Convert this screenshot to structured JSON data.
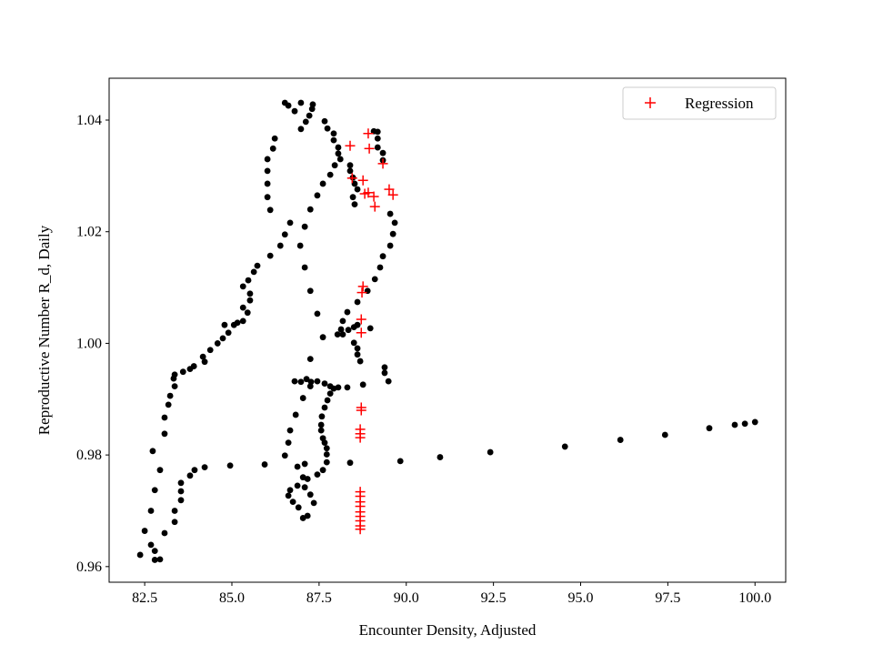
{
  "chart_data": {
    "type": "scatter",
    "title": "",
    "xlabel": "Encounter Density, Adjusted",
    "ylabel": "Reproductive Number R_d, Daily",
    "xlim": [
      81.48,
      100.88
    ],
    "ylim": [
      0.9572,
      1.0475
    ],
    "xticks": [
      82.5,
      85.0,
      87.5,
      90.0,
      92.5,
      95.0,
      97.5,
      100.0
    ],
    "xtick_labels": [
      "82.5",
      "85.0",
      "87.5",
      "90.0",
      "92.5",
      "95.0",
      "97.5",
      "100.0"
    ],
    "yticks": [
      0.96,
      0.98,
      1.0,
      1.02,
      1.04
    ],
    "ytick_labels": [
      "0.96",
      "0.98",
      "1.00",
      "1.02",
      "1.04"
    ],
    "grid": false,
    "legend": {
      "placement": "upper-right",
      "entries": [
        "Regression"
      ]
    },
    "series": [
      {
        "marker": "circle",
        "color": "#000000",
        "points": [
          [
            82.37,
            0.9621
          ],
          [
            82.5,
            0.9664
          ],
          [
            82.68,
            0.97
          ],
          [
            82.68,
            0.9639
          ],
          [
            82.79,
            0.9628
          ],
          [
            82.79,
            0.9612
          ],
          [
            82.94,
            0.9613
          ],
          [
            83.07,
            0.966
          ],
          [
            83.36,
            0.968
          ],
          [
            83.36,
            0.97
          ],
          [
            83.54,
            0.9719
          ],
          [
            83.54,
            0.9735
          ],
          [
            83.54,
            0.975
          ],
          [
            83.8,
            0.9763
          ],
          [
            83.93,
            0.9773
          ],
          [
            84.22,
            0.9778
          ],
          [
            84.95,
            0.9781
          ],
          [
            85.94,
            0.9783
          ],
          [
            86.88,
            0.9779
          ],
          [
            87.09,
            0.9784
          ],
          [
            88.39,
            0.9786
          ],
          [
            89.83,
            0.9789
          ],
          [
            90.97,
            0.9796
          ],
          [
            92.41,
            0.9805
          ],
          [
            94.55,
            0.9815
          ],
          [
            96.14,
            0.9827
          ],
          [
            97.42,
            0.9836
          ],
          [
            98.69,
            0.9848
          ],
          [
            99.42,
            0.9854
          ],
          [
            99.71,
            0.9856
          ],
          [
            100.0,
            0.9859
          ],
          [
            82.79,
            0.9737
          ],
          [
            82.94,
            0.9773
          ],
          [
            82.73,
            0.9807
          ],
          [
            83.07,
            0.9838
          ],
          [
            83.07,
            0.9867
          ],
          [
            83.18,
            0.989
          ],
          [
            83.23,
            0.9906
          ],
          [
            83.36,
            0.9923
          ],
          [
            83.33,
            0.9937
          ],
          [
            83.36,
            0.9944
          ],
          [
            83.6,
            0.9949
          ],
          [
            83.8,
            0.9954
          ],
          [
            83.91,
            0.9959
          ],
          [
            84.22,
            0.9967
          ],
          [
            84.17,
            0.9976
          ],
          [
            84.38,
            0.9988
          ],
          [
            84.59,
            1.0
          ],
          [
            84.74,
            1.0009
          ],
          [
            84.9,
            1.0019
          ],
          [
            84.79,
            1.0033
          ],
          [
            85.06,
            1.0033
          ],
          [
            85.16,
            1.0037
          ],
          [
            85.32,
            1.004
          ],
          [
            85.45,
            1.0055
          ],
          [
            85.32,
            1.0064
          ],
          [
            85.52,
            1.0077
          ],
          [
            85.52,
            1.0089
          ],
          [
            85.32,
            1.0102
          ],
          [
            85.47,
            1.0113
          ],
          [
            85.63,
            1.0128
          ],
          [
            85.73,
            1.0139
          ],
          [
            86.1,
            1.0157
          ],
          [
            86.39,
            1.0175
          ],
          [
            86.52,
            1.0195
          ],
          [
            86.67,
            1.0216
          ],
          [
            87.25,
            1.024
          ],
          [
            87.45,
            1.0265
          ],
          [
            87.61,
            1.0286
          ],
          [
            87.82,
            1.0302
          ],
          [
            87.95,
            1.0319
          ],
          [
            88.11,
            1.033
          ],
          [
            88.05,
            1.034
          ],
          [
            88.05,
            1.0351
          ],
          [
            87.92,
            1.0364
          ],
          [
            87.92,
            1.0376
          ],
          [
            87.74,
            1.0385
          ],
          [
            87.66,
            1.0398
          ],
          [
            87.32,
            1.0428
          ],
          [
            87.3,
            1.042
          ],
          [
            87.22,
            1.0408
          ],
          [
            87.12,
            1.0397
          ],
          [
            86.98,
            1.0384
          ],
          [
            86.98,
            1.0431
          ],
          [
            86.52,
            1.0431
          ],
          [
            86.62,
            1.0426
          ],
          [
            86.8,
            1.0416
          ],
          [
            86.23,
            1.0367
          ],
          [
            86.18,
            1.0349
          ],
          [
            86.02,
            1.033
          ],
          [
            86.02,
            1.0309
          ],
          [
            86.02,
            1.0286
          ],
          [
            86.02,
            1.0262
          ],
          [
            86.1,
            1.0239
          ],
          [
            87.09,
            1.0209
          ],
          [
            86.96,
            1.0175
          ],
          [
            87.09,
            1.0136
          ],
          [
            87.25,
            1.0094
          ],
          [
            87.45,
            1.0053
          ],
          [
            87.61,
            1.0011
          ],
          [
            87.25,
            0.9972
          ],
          [
            89.07,
            1.038
          ],
          [
            89.18,
            1.0379
          ],
          [
            89.18,
            1.0367
          ],
          [
            89.18,
            1.0351
          ],
          [
            89.33,
            1.0341
          ],
          [
            89.33,
            1.0328
          ],
          [
            88.39,
            1.0319
          ],
          [
            88.39,
            1.0309
          ],
          [
            88.47,
            1.0297
          ],
          [
            88.52,
            1.0286
          ],
          [
            88.6,
            1.0276
          ],
          [
            88.47,
            1.0262
          ],
          [
            88.52,
            1.0249
          ],
          [
            89.54,
            1.0232
          ],
          [
            89.67,
            1.0216
          ],
          [
            89.62,
            1.0196
          ],
          [
            89.54,
            1.0175
          ],
          [
            89.33,
            1.0156
          ],
          [
            89.25,
            1.0136
          ],
          [
            89.1,
            1.0115
          ],
          [
            88.89,
            1.0094
          ],
          [
            88.6,
            1.0074
          ],
          [
            88.31,
            1.0056
          ],
          [
            88.18,
            1.004
          ],
          [
            88.13,
            1.0025
          ],
          [
            88.03,
            1.0016
          ],
          [
            88.18,
            1.0016
          ],
          [
            88.34,
            1.0024
          ],
          [
            88.5,
            1.0029
          ],
          [
            88.6,
            1.0033
          ],
          [
            88.5,
            1.0001
          ],
          [
            88.6,
            0.9991
          ],
          [
            88.6,
            0.998
          ],
          [
            88.68,
            0.9968
          ],
          [
            88.97,
            1.0027
          ],
          [
            89.38,
            0.9957
          ],
          [
            89.38,
            0.9947
          ],
          [
            89.49,
            0.9932
          ],
          [
            86.8,
            0.9932
          ],
          [
            86.98,
            0.9931
          ],
          [
            87.14,
            0.9936
          ],
          [
            87.27,
            0.9931
          ],
          [
            87.25,
            0.9923
          ],
          [
            87.45,
            0.9932
          ],
          [
            87.66,
            0.9928
          ],
          [
            87.82,
            0.9923
          ],
          [
            88.05,
            0.9921
          ],
          [
            88.31,
            0.9921
          ],
          [
            88.76,
            0.9926
          ],
          [
            87.04,
            0.9902
          ],
          [
            86.83,
            0.9872
          ],
          [
            86.67,
            0.9844
          ],
          [
            86.62,
            0.9822
          ],
          [
            86.52,
            0.9799
          ],
          [
            87.04,
            0.976
          ],
          [
            87.17,
            0.9757
          ],
          [
            86.88,
            0.9745
          ],
          [
            87.09,
            0.9742
          ],
          [
            87.25,
            0.9729
          ],
          [
            86.67,
            0.9737
          ],
          [
            86.62,
            0.9727
          ],
          [
            86.75,
            0.9716
          ],
          [
            86.91,
            0.9706
          ],
          [
            87.04,
            0.9687
          ],
          [
            87.17,
            0.9691
          ],
          [
            87.35,
            0.9714
          ],
          [
            87.45,
            0.9765
          ],
          [
            87.61,
            0.9773
          ],
          [
            87.72,
            0.9787
          ],
          [
            87.72,
            0.9801
          ],
          [
            87.72,
            0.9812
          ],
          [
            87.66,
            0.9822
          ],
          [
            87.61,
            0.983
          ],
          [
            87.56,
            0.9844
          ],
          [
            87.56,
            0.9854
          ],
          [
            87.58,
            0.9869
          ],
          [
            87.66,
            0.9885
          ],
          [
            87.74,
            0.9898
          ],
          [
            87.82,
            0.991
          ],
          [
            87.92,
            0.9919
          ]
        ]
      },
      {
        "name": "Regression",
        "marker": "plus",
        "color": "#ff0000",
        "points": [
          [
            88.39,
            1.0354
          ],
          [
            88.91,
            1.0376
          ],
          [
            88.94,
            1.0349
          ],
          [
            89.33,
            1.0322
          ],
          [
            88.45,
            1.0296
          ],
          [
            88.76,
            1.0292
          ],
          [
            88.81,
            1.0268
          ],
          [
            88.91,
            1.027
          ],
          [
            89.07,
            1.0263
          ],
          [
            89.1,
            1.0245
          ],
          [
            89.51,
            1.0276
          ],
          [
            89.62,
            1.0266
          ],
          [
            88.76,
            1.0102
          ],
          [
            88.73,
            1.0091
          ],
          [
            88.71,
            1.0043
          ],
          [
            88.71,
            1.0019
          ],
          [
            88.71,
            0.9885
          ],
          [
            88.71,
            0.988
          ],
          [
            88.68,
            0.9846
          ],
          [
            88.68,
            0.9838
          ],
          [
            88.68,
            0.9831
          ],
          [
            88.68,
            0.9734
          ],
          [
            88.68,
            0.9726
          ],
          [
            88.68,
            0.9716
          ],
          [
            88.68,
            0.9708
          ],
          [
            88.68,
            0.9698
          ],
          [
            88.68,
            0.969
          ],
          [
            88.68,
            0.9682
          ],
          [
            88.68,
            0.9673
          ],
          [
            88.68,
            0.9667
          ]
        ]
      }
    ]
  }
}
